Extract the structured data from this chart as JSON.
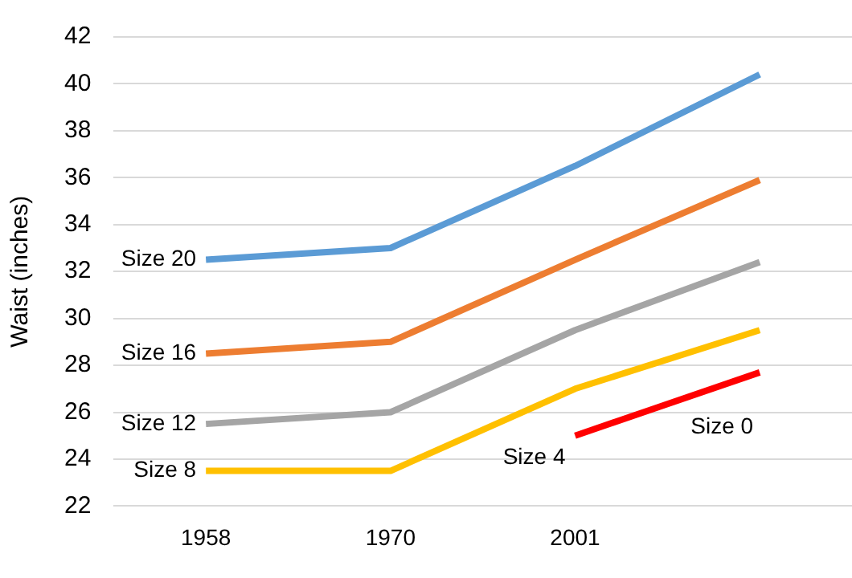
{
  "chart_data": {
    "type": "line",
    "ylabel": "Waist (inches)",
    "categories": [
      "1958",
      "1970",
      "2001",
      null
    ],
    "series": [
      {
        "name": "Size 20",
        "color": "#5b9bd5",
        "values": [
          32.5,
          33,
          36.5,
          40.4
        ]
      },
      {
        "name": "Size 16",
        "color": "#ed7d31",
        "values": [
          28.5,
          29,
          32.5,
          35.9
        ]
      },
      {
        "name": "Size 12",
        "color": "#a5a5a5",
        "values": [
          25.5,
          26,
          29.5,
          32.4
        ]
      },
      {
        "name": "Size 8",
        "color": "#ffc000",
        "values": [
          23.5,
          23.5,
          27,
          29.5
        ]
      },
      {
        "name": "Size 4",
        "color": "#ff0000",
        "values": [
          null,
          null,
          25,
          27.7
        ]
      }
    ],
    "annotations": [
      "Size 0"
    ],
    "ylim": [
      22,
      42
    ],
    "yticks": [
      22,
      24,
      26,
      28,
      30,
      32,
      34,
      36,
      38,
      40,
      42
    ],
    "grid": "y",
    "legend": false,
    "marker": "none",
    "line_style": "solid"
  }
}
